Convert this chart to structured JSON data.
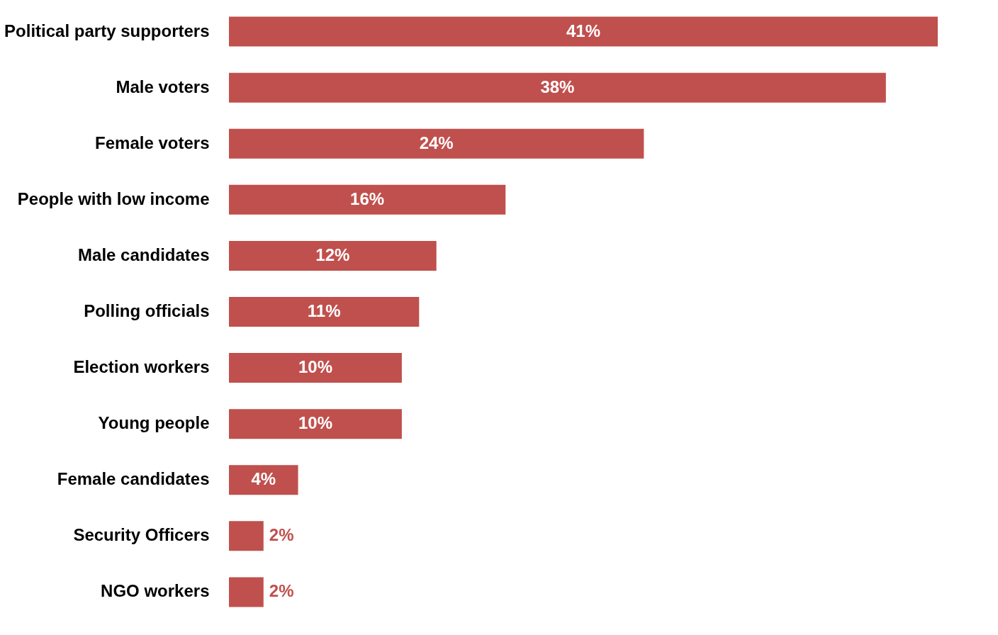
{
  "chart_data": {
    "type": "bar",
    "orientation": "horizontal",
    "categories": [
      "Political party supporters",
      "Male voters",
      "Female voters",
      "People with low income",
      "Male candidates",
      "Polling officials",
      "Election workers",
      "Young people",
      "Female candidates",
      "Security Officers",
      "NGO workers"
    ],
    "values": [
      41,
      38,
      24,
      16,
      12,
      11,
      10,
      10,
      4,
      2,
      2
    ],
    "value_labels": [
      "41%",
      "38%",
      "24%",
      "16%",
      "12%",
      "11%",
      "10%",
      "10%",
      "4%",
      "2%",
      "2%"
    ],
    "color": "#c0504d",
    "grid": false
  }
}
